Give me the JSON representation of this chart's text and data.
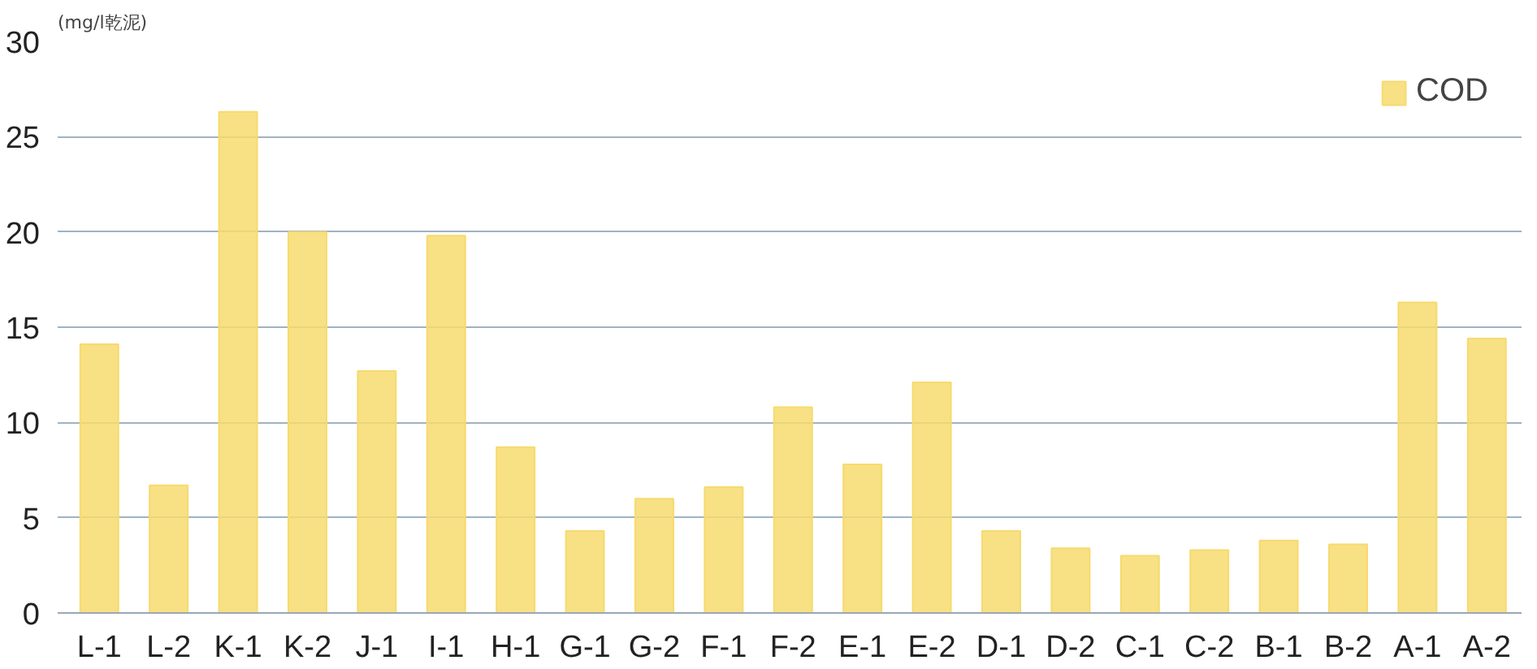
{
  "chart_data": {
    "type": "bar",
    "ylabel": "(mg/l乾泥)",
    "categories": [
      "L-1",
      "L-2",
      "K-1",
      "K-2",
      "J-1",
      "I-1",
      "H-1",
      "G-1",
      "G-2",
      "F-1",
      "F-2",
      "E-1",
      "E-2",
      "D-1",
      "D-2",
      "C-1",
      "C-2",
      "B-1",
      "B-2",
      "A-1",
      "A-2"
    ],
    "series": [
      {
        "name": "COD",
        "color": "#f7da6e",
        "values": [
          14.1,
          6.7,
          26.3,
          20.0,
          12.7,
          19.8,
          8.7,
          4.3,
          6.0,
          6.6,
          10.8,
          7.8,
          12.1,
          4.3,
          3.4,
          3.0,
          3.3,
          3.8,
          3.6,
          16.3,
          14.4
        ]
      }
    ],
    "ylim": [
      0,
      30
    ],
    "yticks": [
      0,
      5,
      10,
      15,
      20,
      25,
      30
    ],
    "grid": "y",
    "legend": "top right"
  }
}
